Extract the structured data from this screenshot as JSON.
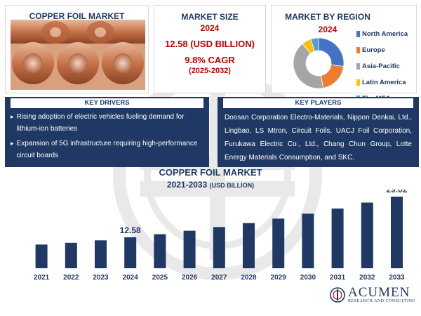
{
  "product_card": {
    "title": "COPPER FOIL MARKET"
  },
  "market_size": {
    "title": "MARKET SIZE",
    "year": "2024",
    "value": "12.58 (USD BILLION)",
    "cagr": "9.8% CAGR",
    "period": "(2025-2032)"
  },
  "region": {
    "title": "MARKET BY REGION",
    "year": "2024",
    "legend": [
      {
        "label": "North America",
        "color": "#4472c4"
      },
      {
        "label": "Europe",
        "color": "#ed7d31"
      },
      {
        "label": "Asia-Pacific",
        "color": "#a5a5a5"
      },
      {
        "label": "Latin America",
        "color": "#ffc000"
      },
      {
        "label": "The MEA",
        "color": "#5b9bd5"
      }
    ]
  },
  "drivers": {
    "title": "KEY DRIVERS",
    "items": [
      "Rising adoption of electric vehicles fueling demand for lithium-ion batteries",
      "Expansion of 5G infrastructure requiring high-performance circuit boards"
    ]
  },
  "players": {
    "title": "KEY PLAYERS",
    "text": "Doosan Corporation Electro-Materials, Nippon Denkai, Ltd., Lingbao, LS Mtron, Circuit Foils, UACJ Foil Corporation, Furukawa Electric Co., Ltd., Chang Chun Group, Lotte Energy Materials Consumption, and SKC."
  },
  "chart_data": {
    "type": "bar",
    "title": "COPPER FOIL MARKET",
    "subtitle_main": "2021-2033",
    "subtitle_unit": "(USD BILLION)",
    "categories": [
      "2021",
      "2022",
      "2023",
      "2024",
      "2025",
      "2026",
      "2027",
      "2028",
      "2029",
      "2030",
      "2031",
      "2032",
      "2033"
    ],
    "values": [
      9.6,
      10.3,
      11.3,
      12.58,
      13.8,
      15.2,
      16.7,
      18.3,
      20.1,
      22.1,
      24.2,
      26.6,
      29.02
    ],
    "labeled": {
      "2024": "12.58",
      "2033": "29.02"
    },
    "bar_color": "#1f3864",
    "grid": false
  },
  "region_shares": [
    27,
    20,
    42,
    6,
    5
  ],
  "logo": {
    "main": "ACUMEN",
    "sub": "RESEARCH AND CONSULTING"
  }
}
